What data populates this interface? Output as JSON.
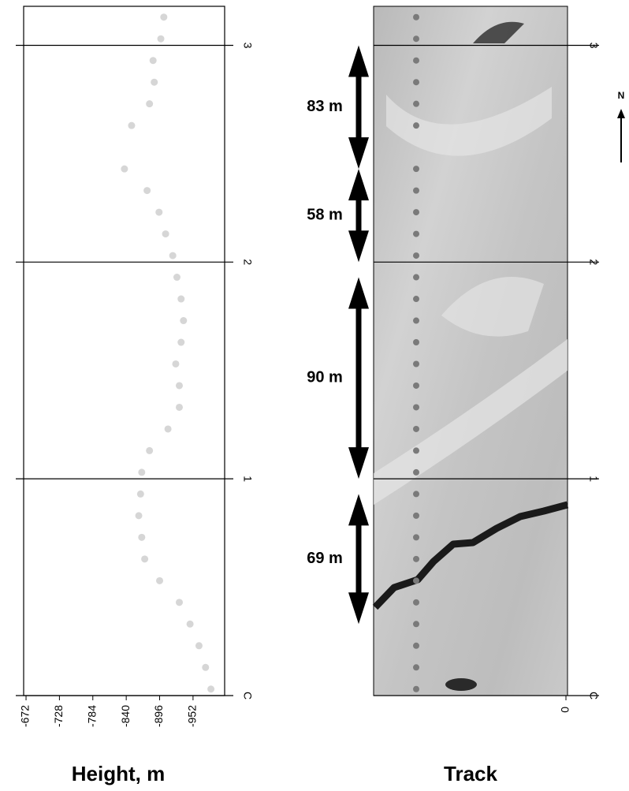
{
  "chart_data": [
    {
      "type": "scatter",
      "xlabel": "Height, m",
      "x": [
        -903,
        -898,
        -885,
        -887,
        -879,
        -849,
        -837,
        -875,
        -895,
        -906,
        -918,
        -925,
        -932,
        -936,
        -932,
        -923,
        -929,
        -929,
        -910,
        -879,
        -866,
        -864,
        -861,
        -866,
        -871,
        -896,
        -929,
        -947,
        -962,
        -973,
        -982
      ],
      "values": [
        3.13,
        3.03,
        2.93,
        2.83,
        2.73,
        2.63,
        2.43,
        2.33,
        2.23,
        2.13,
        2.03,
        1.93,
        1.83,
        1.73,
        1.63,
        1.53,
        1.43,
        1.33,
        1.23,
        1.13,
        1.03,
        0.93,
        0.83,
        0.73,
        0.63,
        0.53,
        0.43,
        0.33,
        0.23,
        0.13,
        0.03
      ],
      "color": "#d6d6d6",
      "xlim": [
        -668,
        -1005
      ],
      "xticks": [
        -672,
        -728,
        -784,
        -840,
        -896,
        -952
      ],
      "ylim": [
        0,
        3.18
      ],
      "yticks": [
        {
          "value": 0,
          "label": "C"
        },
        1,
        2,
        3
      ],
      "grid": true
    },
    {
      "type": "image",
      "xlabel": "Track",
      "xticks": [
        0
      ],
      "ylim": [
        0,
        3.18
      ],
      "yticks": [
        {
          "value": 0,
          "label": "C"
        },
        1,
        2,
        3
      ],
      "grid": true,
      "annotations": [
        {
          "text": "83 m",
          "span": [
            3.0,
            2.43
          ]
        },
        {
          "text": "58 m",
          "span": [
            2.43,
            2.0
          ]
        },
        {
          "text": "90 m",
          "span": [
            1.93,
            1.0
          ]
        },
        {
          "text": "69 m",
          "span": [
            0.93,
            0.33
          ]
        }
      ],
      "north": "N"
    }
  ]
}
